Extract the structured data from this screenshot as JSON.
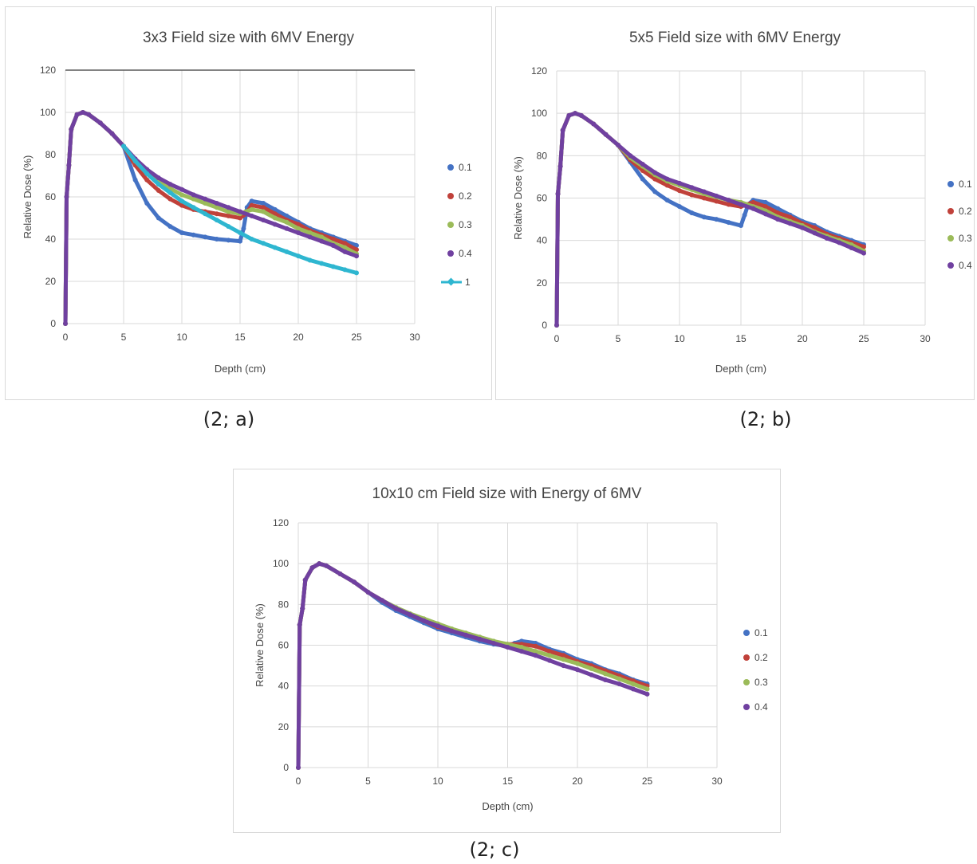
{
  "captions": [
    "(2; a)",
    "(2; b)",
    "(2; c)"
  ],
  "colors": {
    "s01": "#4472c4",
    "s02": "#c0413a",
    "s03": "#9bbb59",
    "s04": "#7040a0",
    "s1": "#2eb6d0"
  },
  "chart_data": [
    {
      "type": "line",
      "title": "3x3 Field size with 6MV Energy",
      "xlabel": "Depth (cm)",
      "ylabel": "Relative Dose (%)",
      "xlim": [
        0,
        30
      ],
      "ylim": [
        0,
        120
      ],
      "xticks": [
        0,
        5,
        10,
        15,
        20,
        25,
        30
      ],
      "yticks": [
        0,
        20,
        40,
        60,
        80,
        100,
        120
      ],
      "grid": true,
      "legend": "right",
      "series": [
        {
          "name": "0.1",
          "color": "#4472c4",
          "marker": "dot",
          "x": [
            0,
            0.1,
            0.3,
            0.5,
            1,
            1.5,
            2,
            3,
            4,
            5,
            6,
            7,
            8,
            9,
            10,
            11,
            12,
            13,
            14,
            15,
            15.3,
            15.6,
            16,
            17,
            18,
            19,
            20,
            21,
            22,
            23,
            24,
            25
          ],
          "y": [
            0,
            60,
            75,
            92,
            99,
            100,
            99,
            95,
            90,
            84,
            68,
            57,
            50,
            46,
            43,
            42,
            41,
            40,
            39.5,
            39,
            45,
            55,
            58,
            57,
            54,
            51,
            48,
            45,
            43,
            41,
            39,
            37
          ]
        },
        {
          "name": "0.2",
          "color": "#c0413a",
          "marker": "dot",
          "x": [
            0,
            0.1,
            0.3,
            0.5,
            1,
            1.5,
            2,
            3,
            4,
            5,
            6,
            7,
            8,
            9,
            10,
            11,
            12,
            13,
            14,
            15,
            15.5,
            16,
            17,
            18,
            19,
            20,
            21,
            22,
            23,
            24,
            25
          ],
          "y": [
            0,
            60,
            75,
            92,
            99,
            100,
            99,
            95,
            90,
            84,
            75,
            68,
            63,
            59,
            56,
            54,
            53,
            52,
            51,
            50,
            52,
            56,
            55,
            52,
            49,
            47,
            44,
            42,
            40,
            38,
            35
          ]
        },
        {
          "name": "0.3",
          "color": "#9bbb59",
          "marker": "dot",
          "x": [
            0,
            0.1,
            0.3,
            0.5,
            1,
            1.5,
            2,
            3,
            4,
            5,
            6,
            7,
            8,
            9,
            10,
            11,
            12,
            13,
            14,
            15,
            15.5,
            16,
            17,
            18,
            19,
            20,
            21,
            22,
            23,
            24,
            25
          ],
          "y": [
            0,
            60,
            75,
            92,
            99,
            100,
            99,
            95,
            90,
            84,
            77,
            71,
            67,
            64,
            61,
            59,
            57,
            55,
            53,
            52,
            53,
            54,
            53,
            50,
            48,
            45,
            43,
            41,
            38,
            36,
            33
          ]
        },
        {
          "name": "0.4",
          "color": "#7040a0",
          "marker": "dot",
          "x": [
            0,
            0.1,
            0.3,
            0.5,
            1,
            1.5,
            2,
            3,
            4,
            5,
            6,
            7,
            8,
            9,
            10,
            11,
            12,
            13,
            14,
            15,
            16,
            17,
            18,
            19,
            20,
            21,
            22,
            23,
            24,
            25
          ],
          "y": [
            0,
            60,
            75,
            92,
            99,
            100,
            99,
            95,
            90,
            84,
            78,
            73,
            69,
            66,
            63.5,
            61,
            59,
            57,
            55,
            53,
            51,
            49,
            47,
            45,
            43,
            41,
            39,
            37,
            34,
            32
          ]
        },
        {
          "name": "1",
          "color": "#2eb6d0",
          "marker": "diamond",
          "x": [
            5,
            6,
            7,
            8,
            9,
            10,
            11,
            12,
            13,
            14,
            15,
            16,
            17,
            18,
            19,
            20,
            21,
            22,
            23,
            24,
            25
          ],
          "y": [
            84,
            77,
            71,
            66,
            62,
            58,
            55,
            52,
            49,
            46,
            43,
            40,
            38,
            36,
            34,
            32,
            30,
            28.5,
            27,
            25.5,
            24
          ]
        }
      ]
    },
    {
      "type": "scatter",
      "title": "5x5 Field size with 6MV Energy",
      "xlabel": "Depth (cm)",
      "ylabel": "Relative Dose (%)",
      "xlim": [
        0,
        30
      ],
      "ylim": [
        0,
        120
      ],
      "xticks": [
        0,
        5,
        10,
        15,
        20,
        25,
        30
      ],
      "yticks": [
        0,
        20,
        40,
        60,
        80,
        100,
        120
      ],
      "grid": true,
      "legend": "right",
      "series": [
        {
          "name": "0.1",
          "color": "#4472c4",
          "x": [
            0,
            0.1,
            0.3,
            0.5,
            1,
            1.5,
            2,
            3,
            4,
            5,
            6,
            7,
            8,
            9,
            10,
            11,
            12,
            13,
            14,
            15,
            15.3,
            15.6,
            16,
            17,
            18,
            19,
            20,
            21,
            22,
            23,
            24,
            25
          ],
          "y": [
            0,
            62,
            75,
            92,
            99,
            100,
            99,
            95,
            90,
            85,
            77,
            69,
            63,
            59,
            56,
            53,
            51,
            50,
            48.5,
            47,
            52,
            57,
            59,
            58,
            55,
            52,
            49,
            47,
            44,
            42,
            40,
            38
          ]
        },
        {
          "name": "0.2",
          "color": "#c0413a",
          "x": [
            0,
            0.1,
            0.3,
            0.5,
            1,
            1.5,
            2,
            3,
            4,
            5,
            6,
            7,
            8,
            9,
            10,
            11,
            12,
            13,
            14,
            15,
            15.5,
            16,
            17,
            18,
            19,
            20,
            21,
            22,
            23,
            24,
            25
          ],
          "y": [
            0,
            62,
            75,
            92,
            99,
            100,
            99,
            95,
            90,
            85,
            78,
            73,
            69,
            66,
            63.5,
            61.5,
            60,
            58.5,
            57,
            56,
            57,
            58,
            56,
            53,
            51,
            48,
            46,
            43,
            41,
            39,
            37
          ]
        },
        {
          "name": "0.3",
          "color": "#9bbb59",
          "x": [
            0,
            0.1,
            0.3,
            0.5,
            1,
            1.5,
            2,
            3,
            4,
            5,
            6,
            7,
            8,
            9,
            10,
            11,
            12,
            13,
            14,
            15,
            16,
            17,
            18,
            19,
            20,
            21,
            22,
            23,
            24,
            25
          ],
          "y": [
            0,
            62,
            75,
            92,
            99,
            100,
            99,
            95,
            90,
            85,
            79,
            75,
            71,
            68,
            66,
            64,
            62,
            60.5,
            59,
            58,
            56,
            54,
            51,
            49,
            47,
            44,
            42,
            40,
            38,
            35
          ]
        },
        {
          "name": "0.4",
          "color": "#7040a0",
          "x": [
            0,
            0.1,
            0.3,
            0.5,
            1,
            1.5,
            2,
            3,
            4,
            5,
            6,
            7,
            8,
            9,
            10,
            11,
            12,
            13,
            14,
            15,
            16,
            17,
            18,
            19,
            20,
            21,
            22,
            23,
            24,
            25
          ],
          "y": [
            0,
            62,
            75,
            92,
            99,
            100,
            99,
            95,
            90,
            85,
            80,
            76,
            72,
            69,
            67,
            65,
            63,
            61,
            59,
            57,
            55,
            52.5,
            50,
            48,
            46,
            43.5,
            41,
            39,
            36.5,
            34
          ]
        }
      ]
    },
    {
      "type": "scatter",
      "title": "10x10 cm Field size with Energy of 6MV",
      "xlabel": "Depth (cm)",
      "ylabel": "Relative Dose (%)",
      "xlim": [
        0,
        30
      ],
      "ylim": [
        0,
        120
      ],
      "xticks": [
        0,
        5,
        10,
        15,
        20,
        25,
        30
      ],
      "yticks": [
        0,
        20,
        40,
        60,
        80,
        100,
        120
      ],
      "grid": true,
      "legend": "right",
      "series": [
        {
          "name": "0.1",
          "color": "#4472c4",
          "x": [
            0,
            0.1,
            0.3,
            0.5,
            1,
            1.5,
            2,
            3,
            4,
            5,
            6,
            7,
            8,
            9,
            10,
            11,
            12,
            13,
            14,
            15,
            15.5,
            16,
            17,
            18,
            19,
            20,
            21,
            22,
            23,
            24,
            25
          ],
          "y": [
            0,
            70,
            78,
            92,
            98,
            100,
            99,
            95,
            91,
            86,
            81,
            77,
            74,
            71,
            68,
            66,
            64,
            62,
            60.5,
            59.5,
            61,
            62,
            61,
            58,
            56,
            53,
            51,
            48,
            46,
            43,
            41
          ]
        },
        {
          "name": "0.2",
          "color": "#c0413a",
          "x": [
            0,
            0.1,
            0.3,
            0.5,
            1,
            1.5,
            2,
            3,
            4,
            5,
            6,
            7,
            8,
            9,
            10,
            11,
            12,
            13,
            14,
            15,
            16,
            17,
            18,
            19,
            20,
            21,
            22,
            23,
            24,
            25
          ],
          "y": [
            0,
            70,
            78,
            92,
            98,
            100,
            99,
            95,
            91,
            86,
            82,
            78,
            75,
            72,
            69,
            67,
            65,
            63,
            61.5,
            60.5,
            60.5,
            59.5,
            57,
            55,
            52,
            50,
            47.5,
            45,
            42.5,
            40
          ]
        },
        {
          "name": "0.3",
          "color": "#9bbb59",
          "x": [
            0,
            0.1,
            0.3,
            0.5,
            1,
            1.5,
            2,
            3,
            4,
            5,
            6,
            7,
            8,
            9,
            10,
            11,
            12,
            13,
            14,
            15,
            16,
            17,
            18,
            19,
            20,
            21,
            22,
            23,
            24,
            25
          ],
          "y": [
            0,
            70,
            78,
            92,
            98,
            100,
            99,
            95,
            91,
            86,
            82,
            78.5,
            75.5,
            73,
            70.5,
            68,
            66,
            64,
            62,
            60.5,
            59,
            57,
            55,
            53,
            51,
            48.5,
            46,
            43.5,
            41,
            38.5
          ]
        },
        {
          "name": "0.4",
          "color": "#7040a0",
          "x": [
            0,
            0.1,
            0.3,
            0.5,
            1,
            1.5,
            2,
            3,
            4,
            5,
            6,
            7,
            8,
            9,
            10,
            11,
            12,
            13,
            14,
            15,
            16,
            17,
            18,
            19,
            20,
            21,
            22,
            23,
            24,
            25
          ],
          "y": [
            0,
            70,
            78,
            92,
            98,
            100,
            99,
            95,
            91,
            86,
            82,
            78,
            75,
            72,
            69.5,
            67,
            65,
            63,
            61,
            59,
            57,
            55,
            52.5,
            50,
            48,
            45.5,
            43,
            41,
            38.5,
            36
          ]
        }
      ]
    }
  ]
}
